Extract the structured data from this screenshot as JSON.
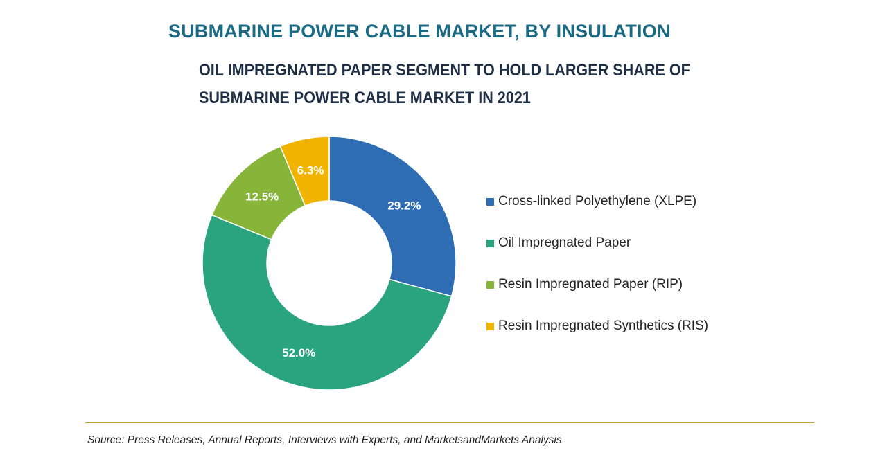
{
  "title": "SUBMARINE POWER CABLE MARKET, BY INSULATION",
  "subtitle": "OIL IMPREGNATED PAPER SEGMENT TO HOLD LARGER SHARE OF SUBMARINE POWER CABLE MARKET IN 2021",
  "source": "Source: Press Releases, Annual Reports, Interviews with Experts, and MarketsandMarkets Analysis",
  "colors": {
    "title": "#1a6a86",
    "subtitle": "#1f2f45",
    "xlpe": "#2e6db4",
    "oip": "#2aa37f",
    "rip": "#86b53a",
    "ris": "#f0b400",
    "divider": "#c9a227",
    "legend_text": "#222222"
  },
  "chart_data": {
    "type": "pie",
    "variant": "donut",
    "title": "SUBMARINE POWER CABLE MARKET, BY INSULATION",
    "unit": "%",
    "slices": [
      {
        "name": "Cross-linked Polyethylene (XLPE)",
        "value": 29.2,
        "label": "29.2%",
        "color": "#2e6db4"
      },
      {
        "name": "Oil Impregnated Paper",
        "value": 52.0,
        "label": "52.0%",
        "color": "#2aa37f"
      },
      {
        "name": "Resin Impregnated Paper (RIP)",
        "value": 12.5,
        "label": "12.5%",
        "color": "#86b53a"
      },
      {
        "name": "Resin Impregnated Synthetics (RIS)",
        "value": 6.3,
        "label": "6.3%",
        "color": "#f0b400"
      }
    ],
    "legend_position": "right"
  }
}
